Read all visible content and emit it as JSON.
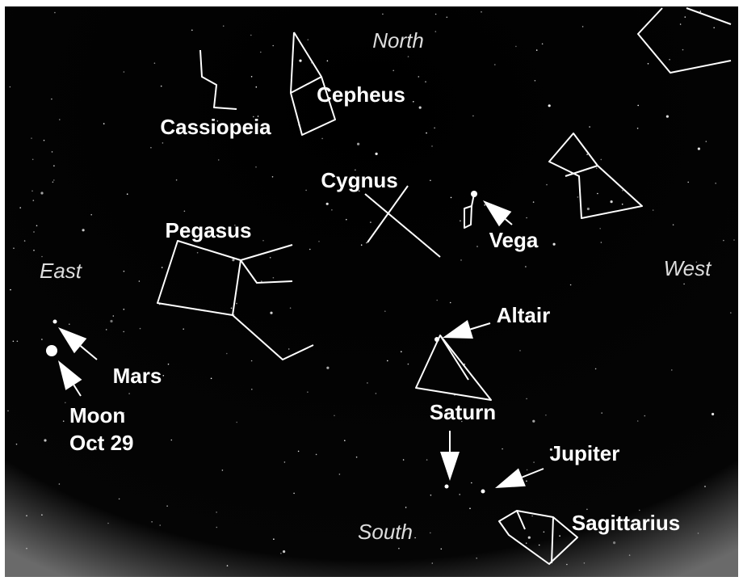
{
  "directions": {
    "north": "North",
    "east": "East",
    "west": "West",
    "south": "South"
  },
  "constellations": [
    "Cassiopeia",
    "Cepheus",
    "Cygnus",
    "Pegasus",
    "Sagittarius"
  ],
  "objects": [
    "Vega",
    "Altair",
    "Saturn",
    "Jupiter",
    "Mars"
  ],
  "moon": [
    "Moon",
    "Oct 29"
  ]
}
